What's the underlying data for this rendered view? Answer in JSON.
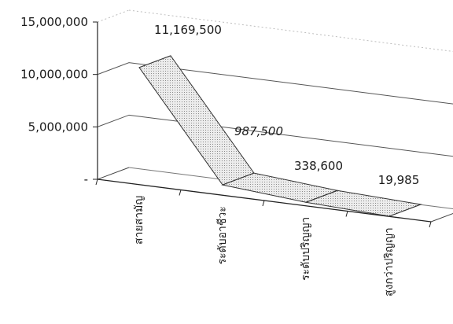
{
  "chart_data": {
    "type": "line",
    "style": "3d-ribbon",
    "categories": [
      "สายสามัญ",
      "ระดับอาชีวะ",
      "ระดับปริญญา",
      "สูงกว่าปริญญา"
    ],
    "values": [
      11169500,
      987500,
      338600,
      19985
    ],
    "data_labels": [
      "11,169,500",
      "987,500",
      "338,600",
      "19,985"
    ],
    "y_ticks": [
      {
        "value": 15000000,
        "label": "15,000,000"
      },
      {
        "value": 10000000,
        "label": "10,000,000"
      },
      {
        "value": 5000000,
        "label": "5,000,000"
      },
      {
        "value": 0,
        "label": "-"
      }
    ],
    "ylim": [
      0,
      15000000
    ],
    "grid": true,
    "legend": "none",
    "colors": {
      "ribbon": "#dcdcdc",
      "stroke": "#333333",
      "grid": "#555555"
    }
  }
}
